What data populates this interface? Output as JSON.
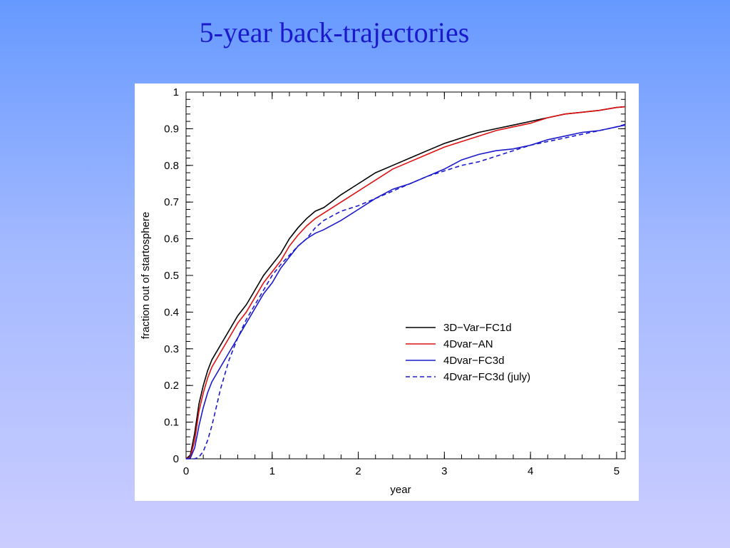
{
  "slide": {
    "title": "5-year back-trajectories"
  },
  "colors": {
    "black_series": "#000000",
    "red_series": "#dd1111",
    "blue_series": "#1a1acc",
    "title": "#1a1acc"
  },
  "chart_data": {
    "type": "line",
    "title": "",
    "xlabel": "year",
    "ylabel": "fraction out of startosphere",
    "xlim": [
      0,
      5.1
    ],
    "ylim": [
      0,
      1
    ],
    "xticks": [
      0,
      1,
      2,
      3,
      4,
      5
    ],
    "yticks": [
      0,
      0.1,
      0.2,
      0.3,
      0.4,
      0.5,
      0.6,
      0.7,
      0.8,
      0.9,
      1
    ],
    "grid": false,
    "legend_position": "lower-right",
    "series": [
      {
        "name": "3D−Var−FC1d",
        "color": "#000000",
        "dash": "solid",
        "x": [
          0,
          0.05,
          0.1,
          0.15,
          0.2,
          0.25,
          0.3,
          0.4,
          0.5,
          0.6,
          0.7,
          0.8,
          0.9,
          1.0,
          1.1,
          1.2,
          1.3,
          1.4,
          1.5,
          1.6,
          1.8,
          2.0,
          2.2,
          2.4,
          2.6,
          2.8,
          3.0,
          3.2,
          3.4,
          3.6,
          3.8,
          4.0,
          4.2,
          4.4,
          4.6,
          4.8,
          5.0,
          5.1
        ],
        "y": [
          0,
          0.01,
          0.07,
          0.15,
          0.2,
          0.24,
          0.27,
          0.31,
          0.35,
          0.39,
          0.42,
          0.46,
          0.5,
          0.53,
          0.56,
          0.6,
          0.63,
          0.655,
          0.675,
          0.685,
          0.72,
          0.75,
          0.78,
          0.8,
          0.82,
          0.84,
          0.86,
          0.875,
          0.89,
          0.9,
          0.91,
          0.92,
          0.93,
          0.94,
          0.945,
          0.95,
          0.958,
          0.96
        ]
      },
      {
        "name": "4Dvar−AN",
        "color": "#dd1111",
        "dash": "solid",
        "x": [
          0,
          0.05,
          0.1,
          0.15,
          0.2,
          0.25,
          0.3,
          0.4,
          0.5,
          0.6,
          0.7,
          0.8,
          0.9,
          1.0,
          1.1,
          1.2,
          1.3,
          1.4,
          1.5,
          1.6,
          1.8,
          2.0,
          2.2,
          2.4,
          2.6,
          2.8,
          3.0,
          3.2,
          3.4,
          3.6,
          3.8,
          4.0,
          4.2,
          4.4,
          4.6,
          4.8,
          5.0,
          5.1
        ],
        "y": [
          0,
          0.005,
          0.05,
          0.13,
          0.18,
          0.22,
          0.25,
          0.29,
          0.33,
          0.37,
          0.4,
          0.44,
          0.48,
          0.51,
          0.54,
          0.58,
          0.61,
          0.635,
          0.655,
          0.67,
          0.7,
          0.73,
          0.76,
          0.79,
          0.81,
          0.83,
          0.85,
          0.865,
          0.88,
          0.895,
          0.905,
          0.915,
          0.93,
          0.94,
          0.945,
          0.95,
          0.958,
          0.96
        ]
      },
      {
        "name": "4Dvar−FC3d",
        "color": "#1a1acc",
        "dash": "solid",
        "x": [
          0,
          0.05,
          0.1,
          0.15,
          0.2,
          0.25,
          0.3,
          0.4,
          0.5,
          0.6,
          0.7,
          0.8,
          0.9,
          1.0,
          1.1,
          1.2,
          1.3,
          1.4,
          1.5,
          1.6,
          1.8,
          2.0,
          2.2,
          2.4,
          2.6,
          2.8,
          3.0,
          3.2,
          3.4,
          3.6,
          3.8,
          4.0,
          4.2,
          4.4,
          4.6,
          4.8,
          5.0,
          5.1
        ],
        "y": [
          0,
          0.002,
          0.03,
          0.09,
          0.14,
          0.18,
          0.21,
          0.25,
          0.29,
          0.33,
          0.37,
          0.41,
          0.45,
          0.48,
          0.52,
          0.55,
          0.58,
          0.6,
          0.615,
          0.625,
          0.65,
          0.68,
          0.71,
          0.735,
          0.75,
          0.77,
          0.79,
          0.815,
          0.83,
          0.84,
          0.845,
          0.855,
          0.87,
          0.88,
          0.89,
          0.895,
          0.905,
          0.91
        ]
      },
      {
        "name": "4Dvar−FC3d (july)",
        "color": "#1a1acc",
        "dash": "dashed",
        "x": [
          0,
          0.1,
          0.15,
          0.2,
          0.25,
          0.3,
          0.35,
          0.4,
          0.5,
          0.6,
          0.7,
          0.8,
          0.9,
          1.0,
          1.1,
          1.2,
          1.3,
          1.4,
          1.5,
          1.6,
          1.8,
          2.0,
          2.2,
          2.4,
          2.6,
          2.8,
          3.0,
          3.2,
          3.4,
          3.6,
          3.8,
          4.0,
          4.2,
          4.4,
          4.6,
          4.8,
          5.0,
          5.1
        ],
        "y": [
          0,
          0,
          0.005,
          0.02,
          0.05,
          0.09,
          0.14,
          0.19,
          0.27,
          0.33,
          0.38,
          0.42,
          0.46,
          0.5,
          0.53,
          0.555,
          0.58,
          0.6,
          0.63,
          0.65,
          0.675,
          0.69,
          0.71,
          0.73,
          0.75,
          0.77,
          0.785,
          0.8,
          0.81,
          0.825,
          0.84,
          0.855,
          0.865,
          0.875,
          0.885,
          0.895,
          0.905,
          0.912
        ]
      }
    ]
  }
}
